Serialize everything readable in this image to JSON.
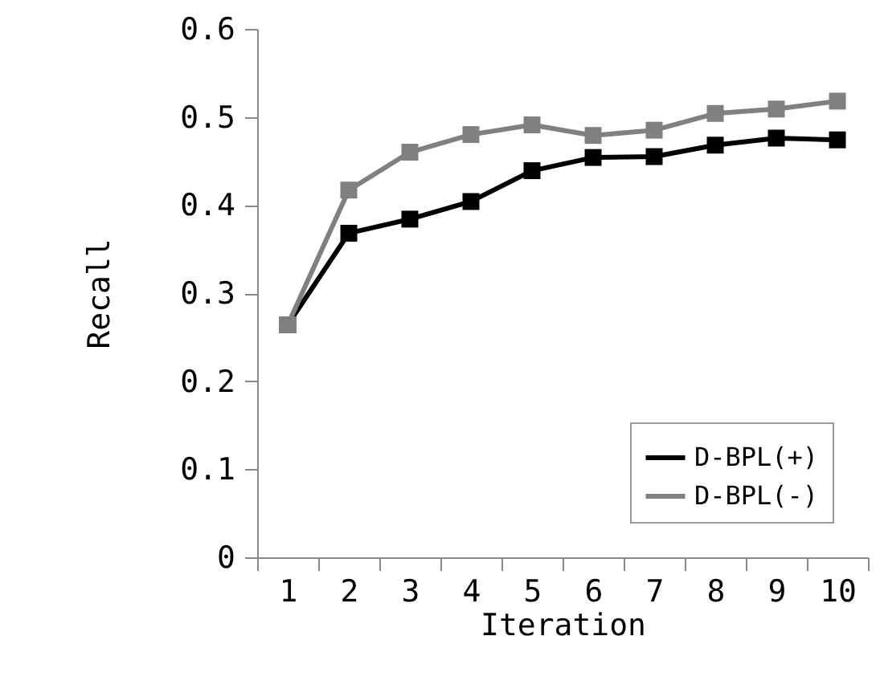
{
  "chart_data": {
    "type": "line",
    "xlabel": "Iteration",
    "ylabel": "Recall",
    "categories": [
      "1",
      "2",
      "3",
      "4",
      "5",
      "6",
      "7",
      "8",
      "9",
      "10"
    ],
    "series": [
      {
        "name": "D-BPL(+)",
        "color": "#000000",
        "values": [
          0.264,
          0.368,
          0.384,
          0.404,
          0.439,
          0.454,
          0.455,
          0.468,
          0.476,
          0.474
        ]
      },
      {
        "name": "D-BPL(-)",
        "color": "#808080",
        "values": [
          0.264,
          0.417,
          0.46,
          0.48,
          0.491,
          0.479,
          0.485,
          0.504,
          0.509,
          0.518
        ]
      }
    ],
    "ylim": [
      0,
      0.6
    ],
    "yticks": [
      0,
      0.1,
      0.2,
      0.3,
      0.4,
      0.5,
      0.6
    ],
    "grid": false,
    "legend": "bottom right",
    "marker": "square",
    "line_style": "solid"
  }
}
